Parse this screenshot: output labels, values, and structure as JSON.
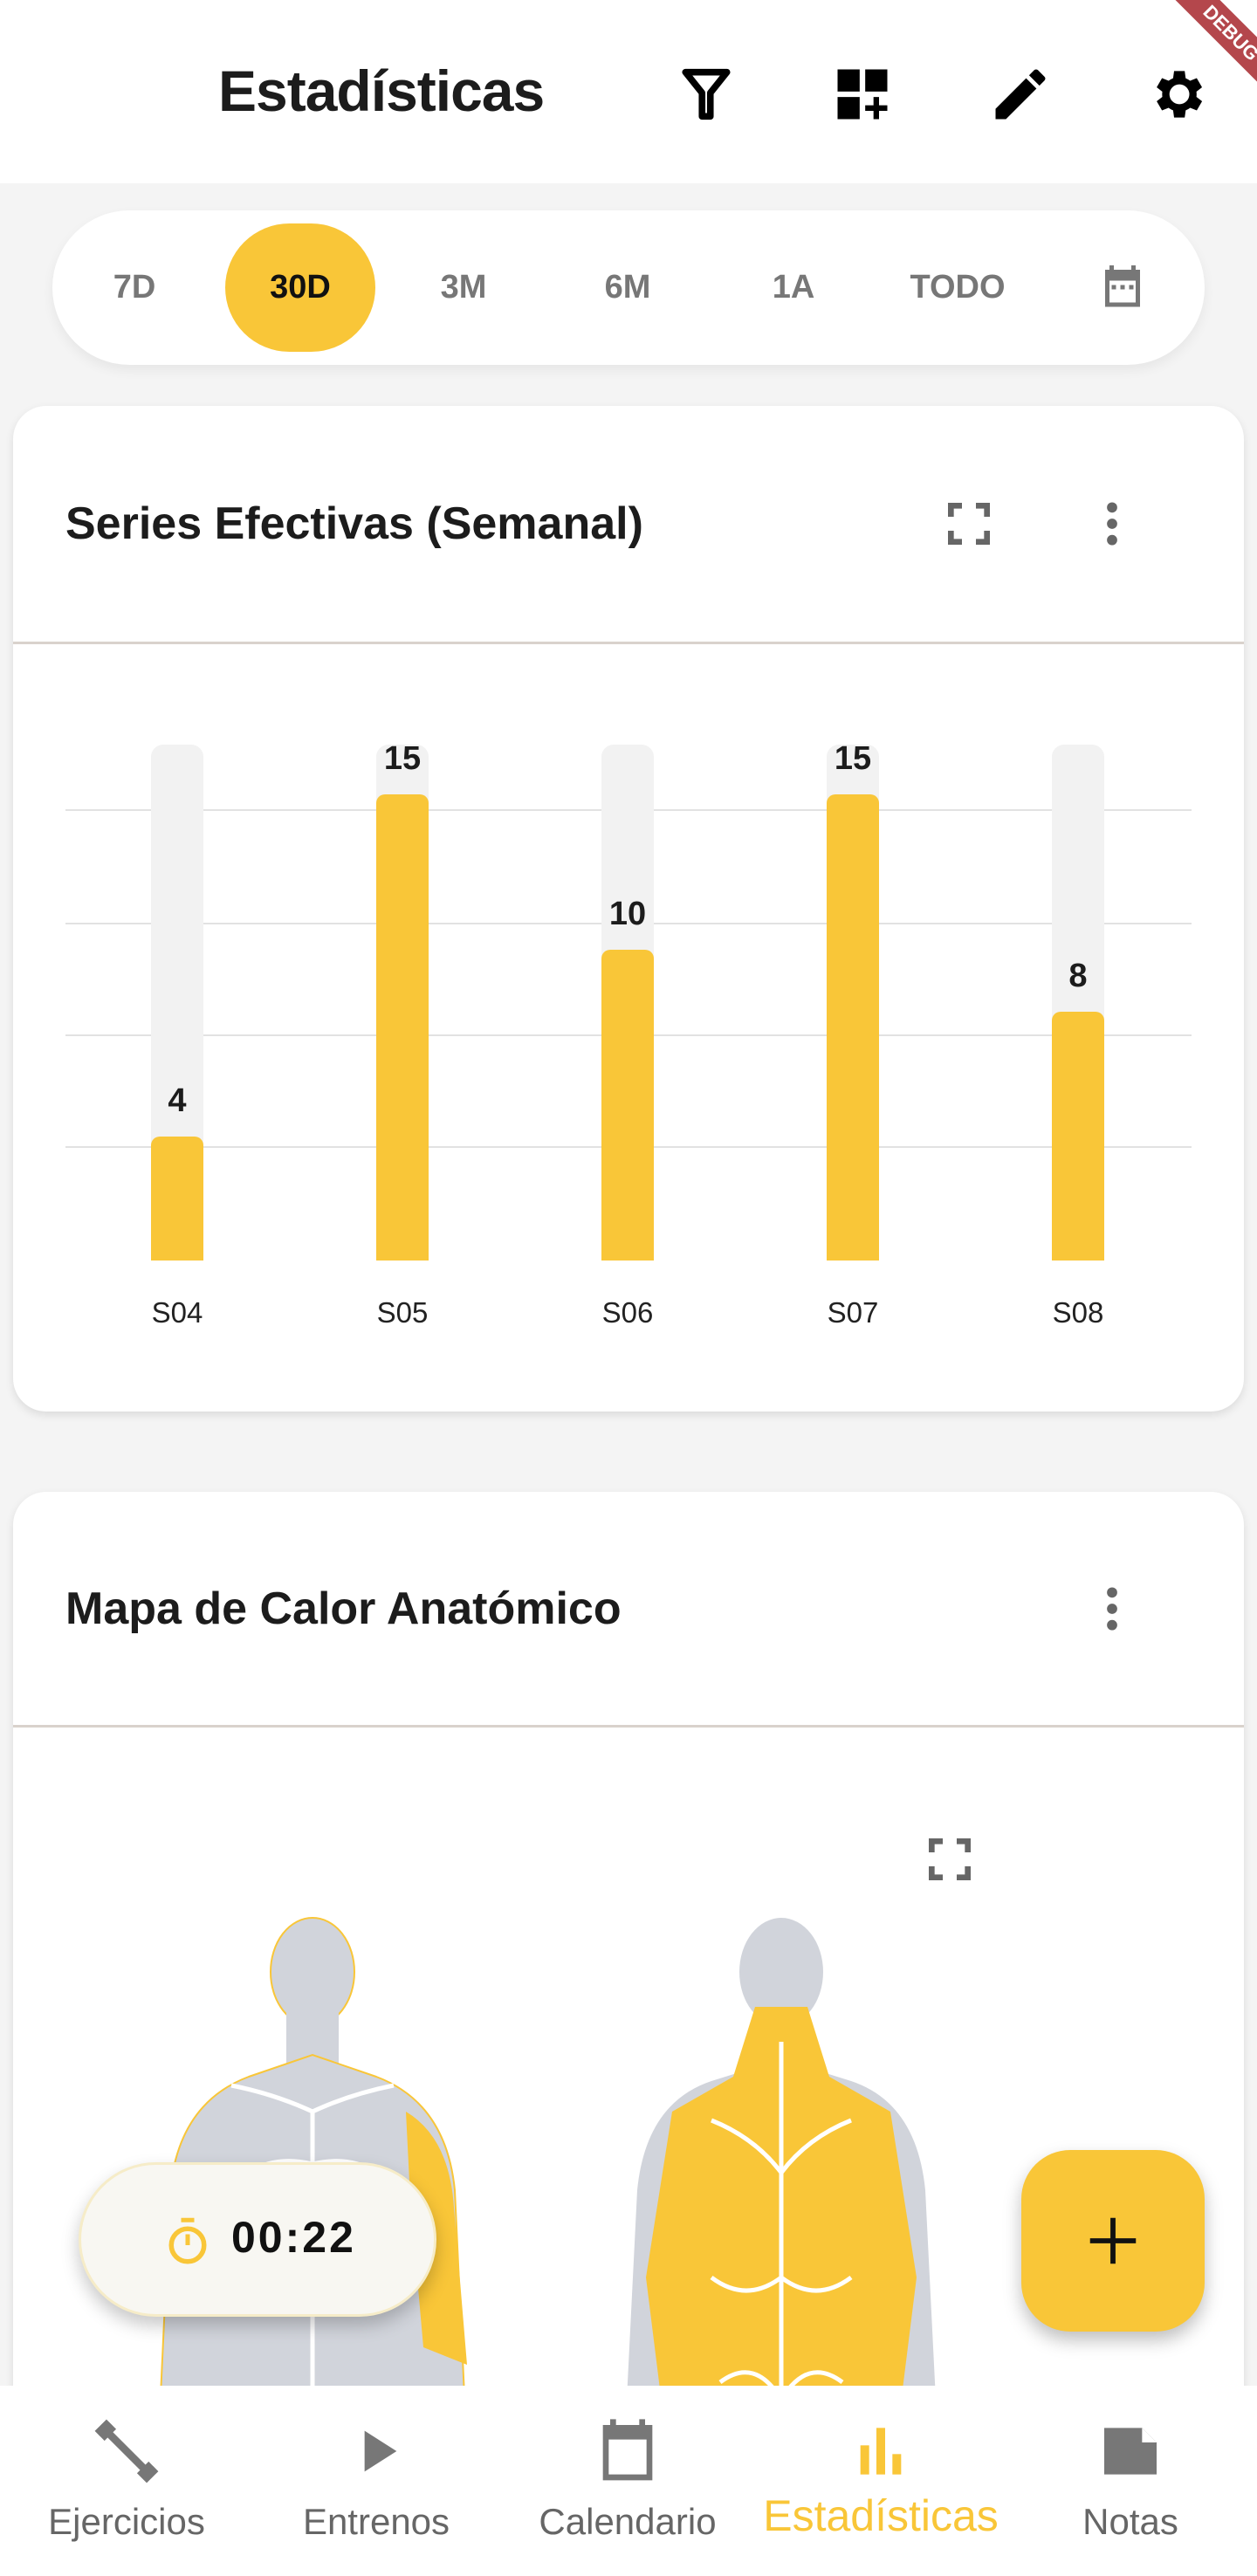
{
  "header": {
    "title": "Estadísticas",
    "icons": [
      "filter-icon",
      "add-widget-icon",
      "edit-icon",
      "settings-icon"
    ],
    "debug_banner": "DEBUG"
  },
  "range": {
    "items": [
      "7D",
      "30D",
      "3M",
      "6M",
      "1A",
      "TODO"
    ],
    "selected": "30D",
    "calendar_icon": "calendar-icon"
  },
  "card1": {
    "title": "Series Efectivas (Semanal)"
  },
  "chart_data": {
    "type": "bar",
    "categories": [
      "S04",
      "S05",
      "S06",
      "S07",
      "S08"
    ],
    "values": [
      4,
      15,
      10,
      15,
      8
    ],
    "title": "Series Efectivas (Semanal)",
    "xlabel": "",
    "ylabel": "",
    "grid": true,
    "color": "#f9c638"
  },
  "card2": {
    "title": "Mapa de Calor Anatómico"
  },
  "timer": {
    "value": "00:22"
  },
  "nav": {
    "items": [
      {
        "label": "Ejercicios",
        "icon": "dumbbell-icon"
      },
      {
        "label": "Entrenos",
        "icon": "play-icon"
      },
      {
        "label": "Calendario",
        "icon": "calendar-icon"
      },
      {
        "label": "Estadísticas",
        "icon": "bar-chart-icon"
      },
      {
        "label": "Notas",
        "icon": "note-icon"
      }
    ],
    "active": "Estadísticas"
  },
  "colors": {
    "accent": "#f9c638",
    "muscle_inactive": "#d1d4db"
  }
}
